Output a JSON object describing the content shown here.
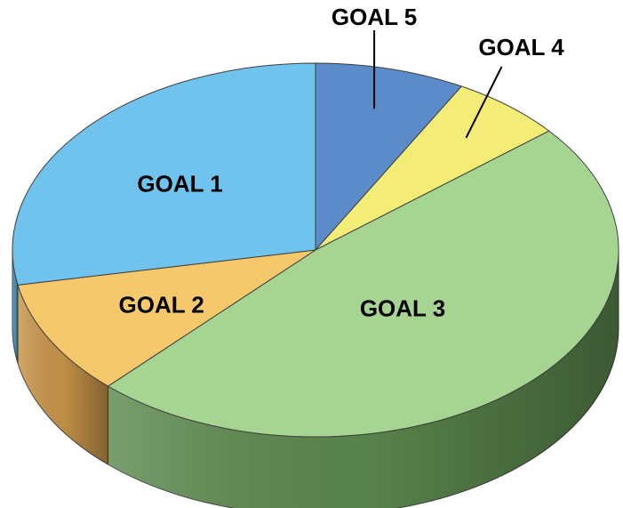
{
  "chart_data": {
    "type": "pie",
    "style": "3d-tilted",
    "title": "",
    "start_angle_deg": 90,
    "direction": "clockwise",
    "legend": "none",
    "slices": [
      {
        "name": "GOAL 5",
        "value": 8,
        "color": "#5b8bc9",
        "side_color": "#3f6aa1",
        "label_position": "outside"
      },
      {
        "name": "GOAL 4",
        "value": 6,
        "color": "#f3ed78",
        "side_color": "#c4bd52",
        "label_position": "outside"
      },
      {
        "name": "GOAL 3",
        "value": 48,
        "color": "#a6d592",
        "side_color": "#5d8a4f",
        "label_position": "inside"
      },
      {
        "name": "GOAL 2",
        "value": 10,
        "color": "#f6c86c",
        "side_color": "#c9964a",
        "label_position": "inside"
      },
      {
        "name": "GOAL 1",
        "value": 28,
        "color": "#6fc3ec",
        "side_color": "#4b97c0",
        "label_position": "inside"
      }
    ]
  }
}
